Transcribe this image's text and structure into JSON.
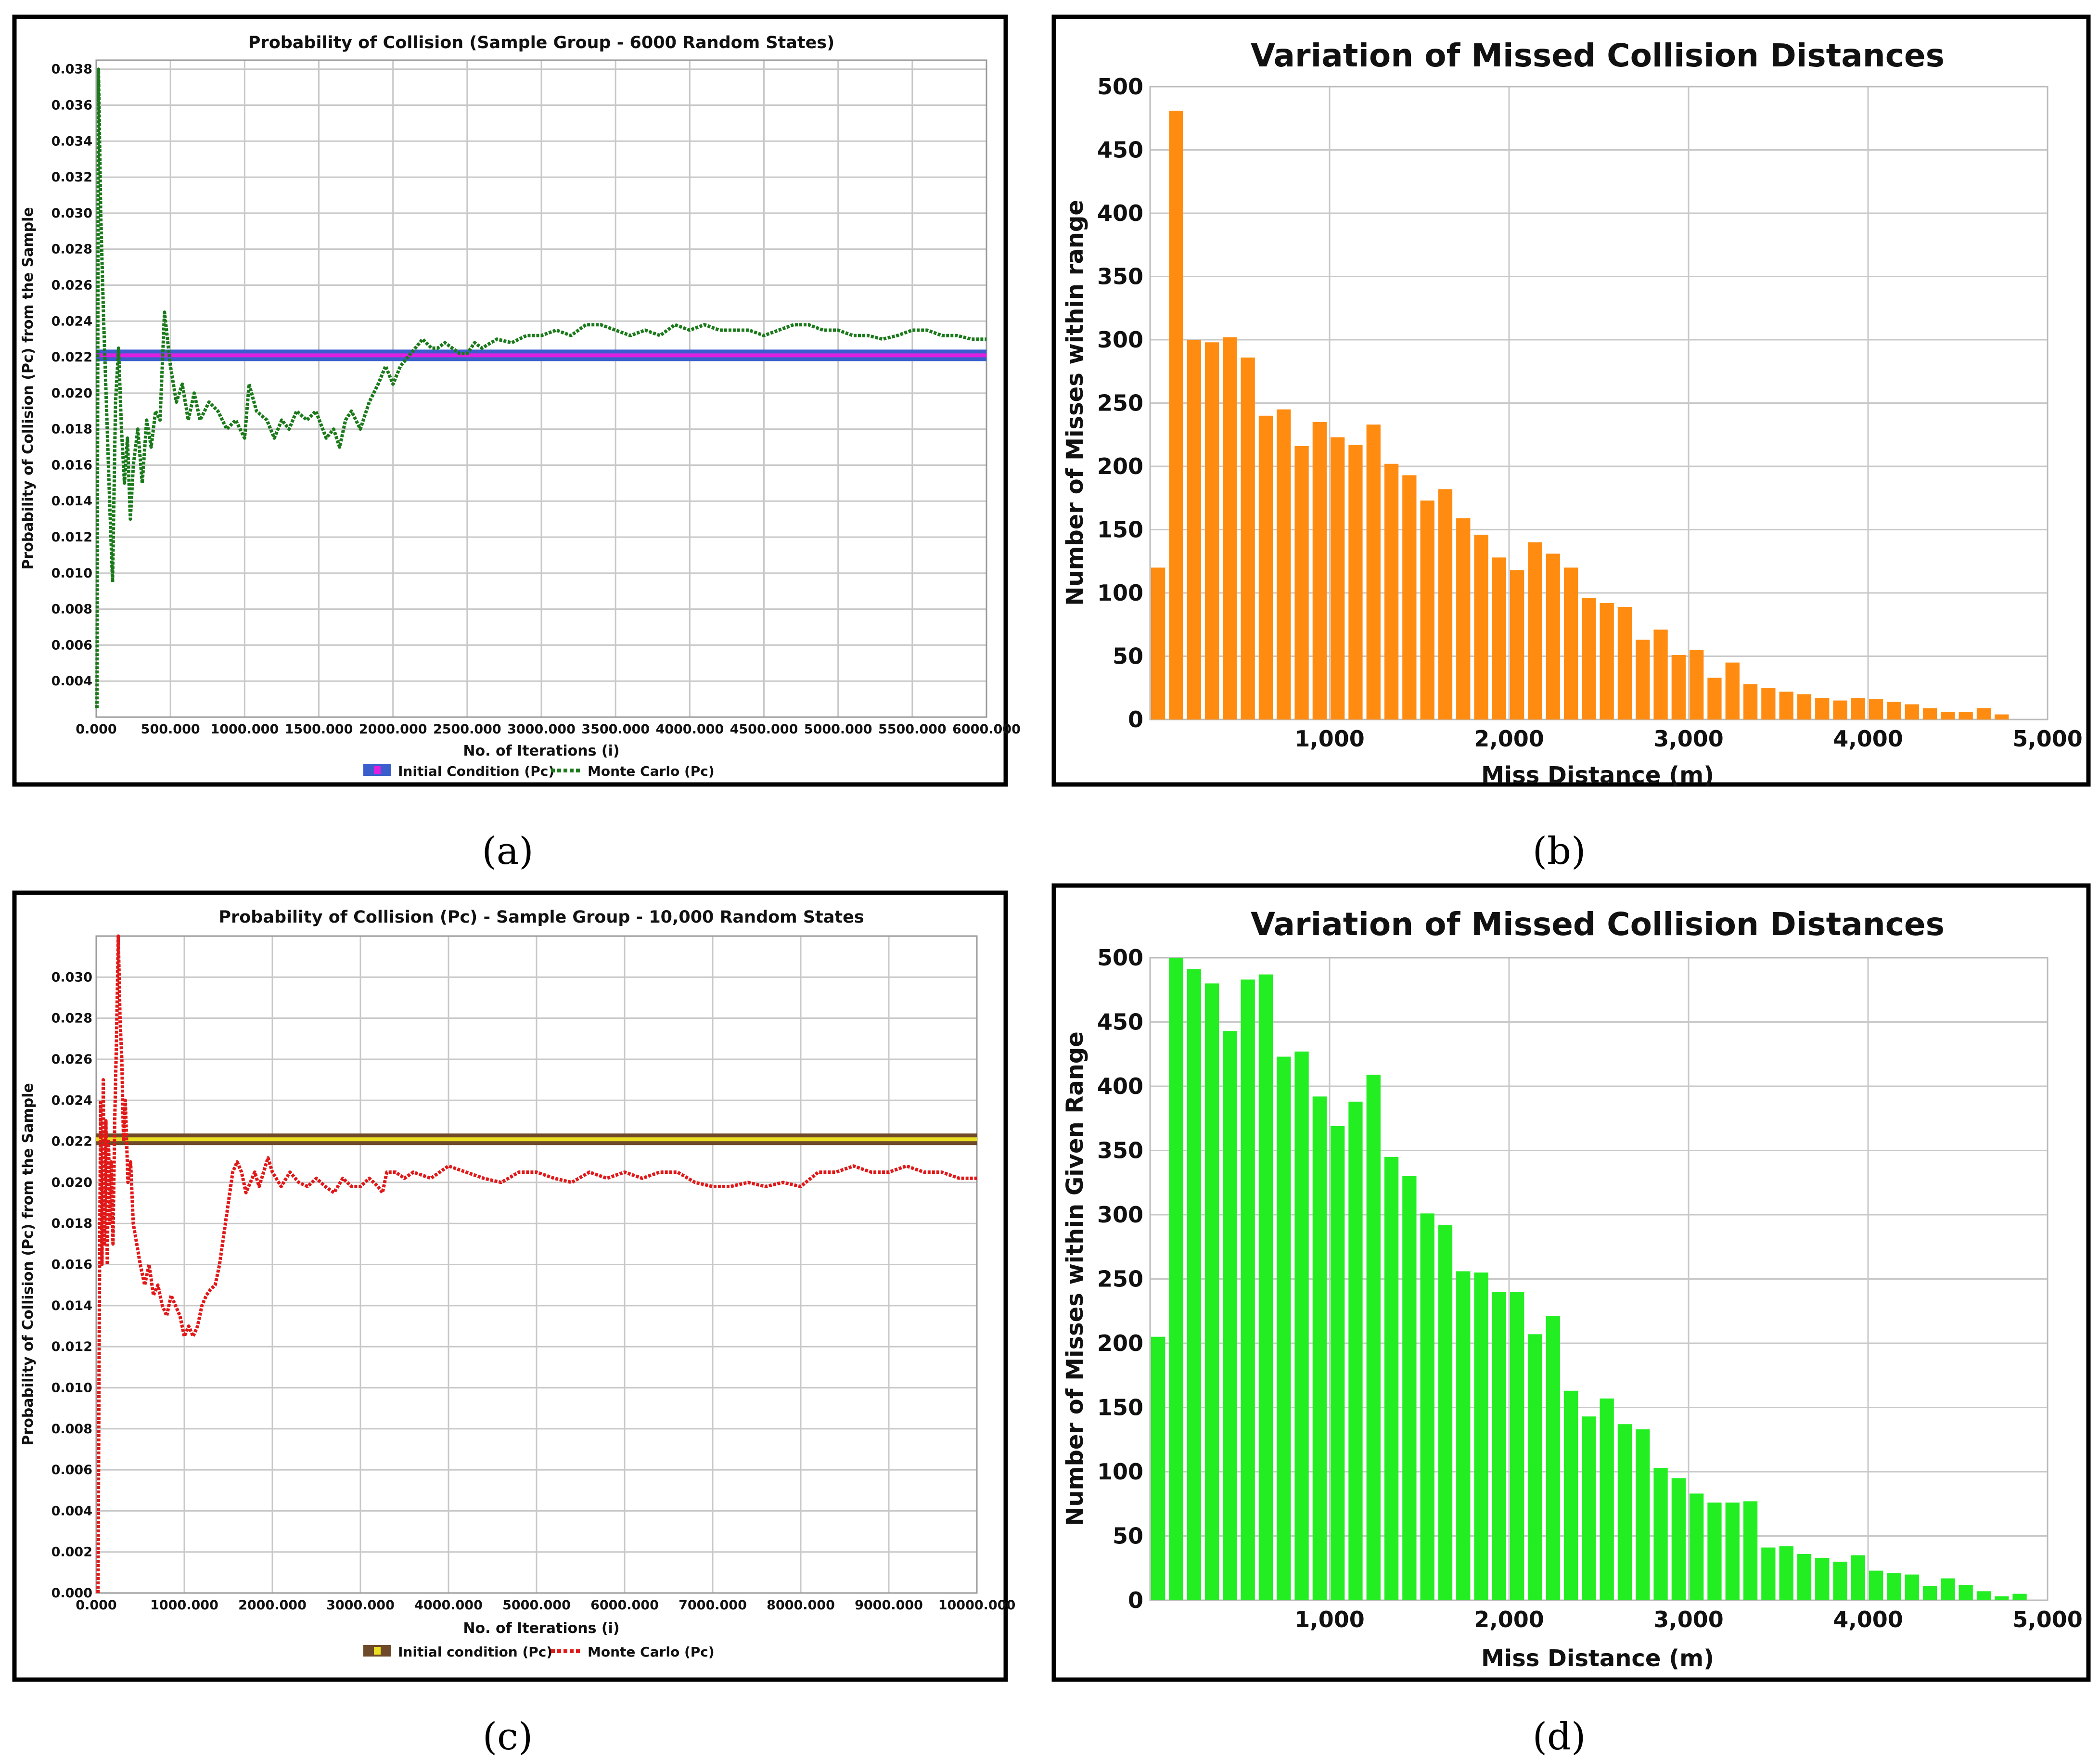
{
  "captions": [
    "(a)",
    "(b)",
    "(c)",
    "(d)"
  ],
  "chart_data": [
    {
      "id": "a",
      "type": "line",
      "title": "Probability of Collision (Sample Group - 6000 Random States)",
      "xlabel": "No. of Iterations (i)",
      "ylabel": "Probability of Collision (Pc) from the Sample",
      "xlim": [
        0,
        6000
      ],
      "ylim": [
        0.002,
        0.0385
      ],
      "xticks": [
        0,
        500,
        1000,
        1500,
        2000,
        2500,
        3000,
        3500,
        4000,
        4500,
        5000,
        5500,
        6000
      ],
      "xtick_labels": [
        "0.000",
        "500.000",
        "1000.000",
        "1500.000",
        "2000.000",
        "2500.000",
        "3000.000",
        "3500.000",
        "4000.000",
        "4500.000",
        "5000.000",
        "5500.000",
        "6000.000"
      ],
      "yticks": [
        0.004,
        0.006,
        0.008,
        0.01,
        0.012,
        0.014,
        0.016,
        0.018,
        0.02,
        0.022,
        0.024,
        0.026,
        0.028,
        0.03,
        0.032,
        0.034,
        0.036,
        0.038
      ],
      "ytick_labels": [
        "0.004",
        "0.006",
        "0.008",
        "0.010",
        "0.012",
        "0.014",
        "0.016",
        "0.018",
        "0.020",
        "0.022",
        "0.024",
        "0.026",
        "0.028",
        "0.030",
        "0.032",
        "0.034",
        "0.036",
        "0.038"
      ],
      "series": [
        {
          "name": "Initial Condition (Pc)",
          "kind": "constant",
          "value": 0.0221,
          "color": "#3a5fcd",
          "marker_color": "#e020e0"
        },
        {
          "name": "Monte Carlo (Pc)",
          "kind": "dotted",
          "color": "#1a7a1a",
          "x": [
            5,
            15,
            30,
            50,
            70,
            90,
            110,
            130,
            150,
            170,
            190,
            210,
            230,
            250,
            280,
            310,
            340,
            370,
            400,
            430,
            460,
            500,
            540,
            580,
            620,
            660,
            700,
            760,
            820,
            880,
            940,
            1000,
            1030,
            1080,
            1150,
            1200,
            1250,
            1300,
            1350,
            1420,
            1480,
            1550,
            1600,
            1640,
            1680,
            1720,
            1780,
            1840,
            1900,
            1950,
            2000,
            2050,
            2100,
            2150,
            2200,
            2260,
            2300,
            2350,
            2400,
            2450,
            2500,
            2550,
            2600,
            2700,
            2800,
            2900,
            3000,
            3100,
            3200,
            3300,
            3400,
            3500,
            3600,
            3700,
            3800,
            3900,
            4000,
            4100,
            4200,
            4300,
            4400,
            4500,
            4600,
            4700,
            4800,
            4900,
            5000,
            5100,
            5200,
            5300,
            5400,
            5500,
            5600,
            5700,
            5800,
            5900,
            6000
          ],
          "values": [
            0.0025,
            0.038,
            0.03,
            0.024,
            0.019,
            0.014,
            0.0095,
            0.0195,
            0.0225,
            0.018,
            0.015,
            0.0175,
            0.013,
            0.016,
            0.018,
            0.015,
            0.0185,
            0.017,
            0.019,
            0.0185,
            0.0245,
            0.0215,
            0.0195,
            0.0205,
            0.0185,
            0.02,
            0.0185,
            0.0195,
            0.019,
            0.018,
            0.0185,
            0.0175,
            0.0205,
            0.019,
            0.0185,
            0.0175,
            0.0185,
            0.018,
            0.019,
            0.0185,
            0.019,
            0.0175,
            0.018,
            0.017,
            0.0185,
            0.019,
            0.018,
            0.0195,
            0.0205,
            0.0215,
            0.0205,
            0.0215,
            0.022,
            0.0225,
            0.023,
            0.0225,
            0.0225,
            0.0228,
            0.0225,
            0.0222,
            0.0222,
            0.0228,
            0.0225,
            0.023,
            0.0228,
            0.0232,
            0.0232,
            0.0235,
            0.0232,
            0.0238,
            0.0238,
            0.0235,
            0.0232,
            0.0235,
            0.0232,
            0.0238,
            0.0235,
            0.0238,
            0.0235,
            0.0235,
            0.0235,
            0.0232,
            0.0235,
            0.0238,
            0.0238,
            0.0235,
            0.0235,
            0.0232,
            0.0232,
            0.023,
            0.0232,
            0.0235,
            0.0235,
            0.0232,
            0.0232,
            0.023,
            0.023
          ]
        }
      ],
      "legend": "bottom"
    },
    {
      "id": "b",
      "type": "bar",
      "title": "Variation of Missed Collision Distances",
      "xlabel": "Miss Distance (m)",
      "ylabel": "Number of Misses within range",
      "xlim": [
        0,
        5000
      ],
      "ylim": [
        0,
        500
      ],
      "bin_width": 100,
      "bin_start": 0,
      "xticks": [
        1000,
        2000,
        3000,
        4000,
        5000
      ],
      "xtick_labels": [
        "1,000",
        "2,000",
        "3,000",
        "4,000",
        "5,000"
      ],
      "yticks": [
        0,
        50,
        100,
        150,
        200,
        250,
        300,
        350,
        400,
        450,
        500
      ],
      "ytick_labels": [
        "0",
        "50",
        "100",
        "150",
        "200",
        "250",
        "300",
        "350",
        "400",
        "450",
        "500"
      ],
      "color": "#ff8c10",
      "values": [
        120,
        481,
        300,
        298,
        302,
        286,
        240,
        245,
        216,
        235,
        223,
        217,
        233,
        202,
        193,
        173,
        182,
        159,
        146,
        128,
        118,
        140,
        131,
        120,
        96,
        92,
        89,
        63,
        71,
        51,
        55,
        33,
        45,
        28,
        25,
        22,
        20,
        17,
        15,
        17,
        16,
        14,
        12,
        9,
        6,
        6,
        9,
        4
      ]
    },
    {
      "id": "c",
      "type": "line",
      "title": "Probability of Collision (Pc) - Sample Group - 10,000 Random States",
      "xlabel": "No. of Iterations (i)",
      "ylabel": "Probability of Collision (Pc) from the Sample",
      "xlim": [
        0,
        10000
      ],
      "ylim": [
        0,
        0.032
      ],
      "xticks": [
        0,
        1000,
        2000,
        3000,
        4000,
        5000,
        6000,
        7000,
        8000,
        9000,
        10000
      ],
      "xtick_labels": [
        "0.000",
        "1000.000",
        "2000.000",
        "3000.000",
        "4000.000",
        "5000.000",
        "6000.000",
        "7000.000",
        "8000.000",
        "9000.000",
        "10000.000"
      ],
      "yticks": [
        0,
        0.002,
        0.004,
        0.006,
        0.008,
        0.01,
        0.012,
        0.014,
        0.016,
        0.018,
        0.02,
        0.022,
        0.024,
        0.026,
        0.028,
        0.03
      ],
      "ytick_labels": [
        "0.000",
        "0.002",
        "0.004",
        "0.006",
        "0.008",
        "0.010",
        "0.012",
        "0.014",
        "0.016",
        "0.018",
        "0.020",
        "0.022",
        "0.024",
        "0.026",
        "0.028",
        "0.030"
      ],
      "series": [
        {
          "name": "Initial condition (Pc)",
          "kind": "constant",
          "value": 0.0221,
          "color": "#6e4a2a",
          "marker_color": "#e8e020"
        },
        {
          "name": "Monte Carlo (Pc)",
          "kind": "dotted",
          "color": "#e01818",
          "x": [
            20,
            35,
            50,
            65,
            80,
            95,
            110,
            125,
            140,
            155,
            170,
            190,
            210,
            230,
            250,
            270,
            290,
            310,
            330,
            360,
            390,
            420,
            460,
            500,
            550,
            600,
            650,
            700,
            750,
            800,
            850,
            900,
            950,
            1000,
            1050,
            1100,
            1150,
            1200,
            1250,
            1300,
            1350,
            1400,
            1450,
            1500,
            1550,
            1600,
            1650,
            1700,
            1750,
            1800,
            1850,
            1900,
            1950,
            2000,
            2100,
            2200,
            2300,
            2400,
            2500,
            2600,
            2700,
            2800,
            2900,
            3000,
            3100,
            3200,
            3250,
            3300,
            3400,
            3500,
            3600,
            3800,
            4000,
            4200,
            4400,
            4600,
            4800,
            5000,
            5200,
            5400,
            5600,
            5800,
            6000,
            6200,
            6400,
            6600,
            6800,
            7000,
            7200,
            7400,
            7600,
            7800,
            8000,
            8200,
            8400,
            8600,
            8800,
            9000,
            9200,
            9400,
            9600,
            9800,
            10000
          ],
          "values": [
            0.0,
            0.014,
            0.024,
            0.016,
            0.025,
            0.017,
            0.023,
            0.016,
            0.022,
            0.018,
            0.021,
            0.017,
            0.023,
            0.027,
            0.032,
            0.028,
            0.026,
            0.022,
            0.024,
            0.02,
            0.021,
            0.018,
            0.017,
            0.016,
            0.015,
            0.016,
            0.0145,
            0.015,
            0.014,
            0.0135,
            0.0145,
            0.014,
            0.0135,
            0.0125,
            0.013,
            0.0125,
            0.013,
            0.014,
            0.0145,
            0.0148,
            0.015,
            0.016,
            0.0175,
            0.019,
            0.0205,
            0.021,
            0.0205,
            0.0195,
            0.02,
            0.0205,
            0.0198,
            0.0205,
            0.0212,
            0.0205,
            0.0198,
            0.0205,
            0.02,
            0.0198,
            0.0202,
            0.0198,
            0.0195,
            0.0202,
            0.0198,
            0.0198,
            0.0202,
            0.0198,
            0.0195,
            0.0205,
            0.0205,
            0.0202,
            0.0205,
            0.0202,
            0.0208,
            0.0205,
            0.0202,
            0.02,
            0.0205,
            0.0205,
            0.0202,
            0.02,
            0.0205,
            0.0202,
            0.0205,
            0.0202,
            0.0205,
            0.0205,
            0.02,
            0.0198,
            0.0198,
            0.02,
            0.0198,
            0.02,
            0.0198,
            0.0205,
            0.0205,
            0.0208,
            0.0205,
            0.0205,
            0.0208,
            0.0205,
            0.0205,
            0.0202,
            0.0202
          ]
        }
      ],
      "legend": "bottom"
    },
    {
      "id": "d",
      "type": "bar",
      "title": "Variation of Missed Collision Distances",
      "xlabel": "Miss Distance (m)",
      "ylabel": "Number of Misses within Given Range",
      "xlim": [
        0,
        5000
      ],
      "ylim": [
        0,
        500
      ],
      "bin_width": 100,
      "bin_start": 0,
      "xticks": [
        1000,
        2000,
        3000,
        4000,
        5000
      ],
      "xtick_labels": [
        "1,000",
        "2,000",
        "3,000",
        "4,000",
        "5,000"
      ],
      "yticks": [
        0,
        50,
        100,
        150,
        200,
        250,
        300,
        350,
        400,
        450,
        500
      ],
      "ytick_labels": [
        "0",
        "50",
        "100",
        "150",
        "200",
        "250",
        "300",
        "350",
        "400",
        "450",
        "500"
      ],
      "color": "#22ee22",
      "values": [
        205,
        500,
        491,
        480,
        443,
        483,
        487,
        423,
        427,
        392,
        369,
        388,
        409,
        345,
        330,
        301,
        292,
        256,
        255,
        240,
        240,
        207,
        221,
        163,
        143,
        157,
        137,
        133,
        103,
        95,
        83,
        76,
        76,
        77,
        41,
        42,
        36,
        33,
        30,
        35,
        23,
        21,
        20,
        11,
        17,
        12,
        7,
        3,
        5
      ]
    }
  ]
}
